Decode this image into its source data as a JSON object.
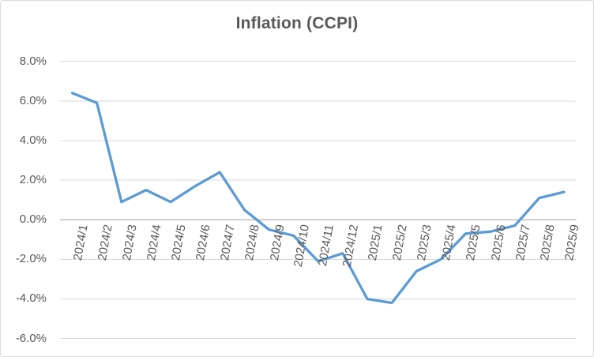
{
  "chart_data": {
    "type": "line",
    "title": "Inflation (CCPI)",
    "categories": [
      "2024/1",
      "2024/2",
      "2024/3",
      "2024/4",
      "2024/5",
      "2024/6",
      "2024/7",
      "2024/8",
      "2024/9",
      "2024/10",
      "2024/11",
      "2024/12",
      "2025/1",
      "2025/2",
      "2025/3",
      "2025/4",
      "2025/5",
      "2025/6",
      "2025/7",
      "2025/8",
      "2025/9"
    ],
    "values": [
      6.4,
      5.9,
      0.9,
      1.5,
      0.9,
      1.7,
      2.4,
      0.5,
      -0.5,
      -0.8,
      -2.1,
      -1.7,
      -4.0,
      -4.2,
      -2.6,
      -2.0,
      -0.7,
      -0.6,
      -0.3,
      1.1,
      1.4
    ],
    "xlabel": "",
    "ylabel": "",
    "ylim": [
      -6.0,
      8.0
    ],
    "ytick_values": [
      8,
      6,
      4,
      2,
      0,
      -2,
      -4,
      -6
    ],
    "ytick_labels": [
      "8.0%",
      "6.0%",
      "4.0%",
      "2.0%",
      "0.0%",
      "-2.0%",
      "-4.0%",
      "-6.0%"
    ],
    "grid": true,
    "legend_position": "none",
    "x_label_rotation_deg": -80,
    "colors": {
      "series_line": "#5B9BD5",
      "gridline": "#D9D9D9",
      "axis_line": "#BFBFBF",
      "text": "#595959",
      "background": "#FFFFFF",
      "border": "#D9D9D9"
    }
  }
}
